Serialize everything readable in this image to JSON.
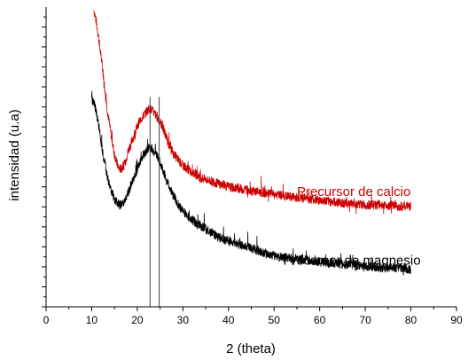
{
  "chart_data": {
    "type": "line",
    "title": "",
    "xlabel": "2 (theta)",
    "ylabel": "intensidad (u.a)",
    "xlim": [
      0,
      90
    ],
    "ylim": [
      0,
      100
    ],
    "x_ticks": [
      0,
      10,
      20,
      30,
      40,
      50,
      60,
      70,
      80,
      90
    ],
    "y_tick_labels_shown": false,
    "legend": "none",
    "grid": false,
    "vertical_markers": [
      22.8,
      24.8
    ],
    "series": [
      {
        "name": "Precursor de calcio",
        "color": "#cc0000",
        "x": [
          10.5,
          11,
          11.5,
          12,
          12.5,
          13,
          13.5,
          14,
          14.5,
          15,
          15.5,
          16,
          16.5,
          17,
          17.5,
          18,
          18.5,
          19,
          19.5,
          20,
          20.5,
          21,
          21.5,
          22,
          22.5,
          23,
          23.5,
          24,
          24.5,
          25,
          25.5,
          26,
          27,
          28,
          29,
          30,
          32,
          34,
          36,
          38,
          40,
          42,
          44,
          46,
          48,
          50,
          52,
          55,
          58,
          60,
          63,
          66,
          70,
          74,
          77,
          80
        ],
        "y": [
          99,
          95,
          90,
          84,
          78,
          71,
          65,
          60,
          55,
          51,
          48,
          46,
          46,
          47,
          49,
          52,
          54,
          56,
          58,
          60,
          62,
          63,
          64,
          65,
          66,
          66,
          65,
          64,
          63,
          62,
          60,
          58,
          54,
          51,
          49,
          47,
          45,
          43,
          42,
          41,
          40,
          39.5,
          39,
          38.5,
          38,
          37.5,
          37,
          36.5,
          36,
          35.5,
          35,
          34.5,
          34,
          34,
          33.5,
          33.5
        ]
      },
      {
        "name": "Precursor de magnesio",
        "color": "#000000",
        "x": [
          10,
          10.5,
          11,
          11.5,
          12,
          12.5,
          13,
          13.5,
          14,
          14.5,
          15,
          15.5,
          16,
          16.5,
          17,
          17.5,
          18,
          18.5,
          19,
          19.5,
          20,
          20.5,
          21,
          21.5,
          22,
          22.5,
          23,
          23.5,
          24,
          24.5,
          25,
          25.5,
          26,
          27,
          28,
          29,
          30,
          32,
          34,
          36,
          38,
          40,
          42,
          44,
          46,
          48,
          50,
          52,
          55,
          58,
          60,
          63,
          66,
          70,
          74,
          77,
          80
        ],
        "y": [
          70,
          68,
          65,
          61,
          56,
          51,
          47,
          43,
          40,
          38,
          36,
          35,
          34,
          34,
          35,
          36,
          38,
          40,
          42,
          44,
          46,
          48,
          50,
          51,
          52,
          53,
          53,
          52,
          51,
          50,
          48,
          46,
          44,
          40,
          37,
          34,
          32,
          29,
          27,
          25,
          23,
          22,
          21,
          20,
          19,
          18,
          17,
          16.5,
          16,
          15.5,
          15,
          14.5,
          14,
          13.5,
          13,
          13,
          12.5
        ]
      }
    ],
    "annotations": [
      {
        "text": "Precursor de calcio",
        "color": "#cc0000",
        "x": 55,
        "y": 37
      },
      {
        "text": "Precursor de magnesio",
        "color": "#000000",
        "x": 52,
        "y": 14
      }
    ]
  }
}
